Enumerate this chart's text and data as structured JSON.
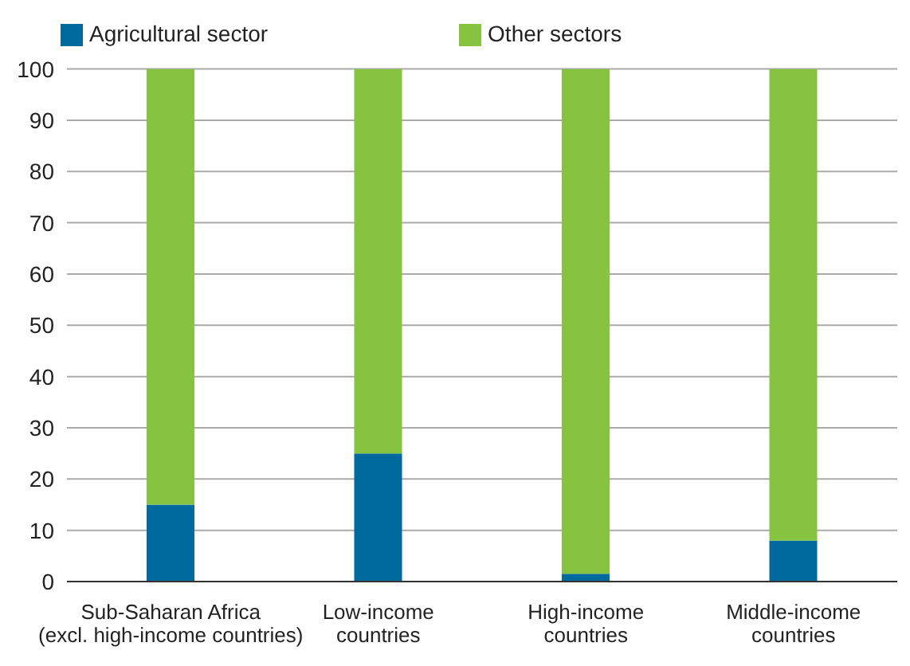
{
  "chart_data": {
    "type": "bar",
    "stacked": true,
    "categories": [
      "Sub-Saharan Africa\n(excl. high-income countries)",
      "Low-income\ncountries",
      "High-income\ncountries",
      "Middle-income\ncountries"
    ],
    "series": [
      {
        "name": "Agricultural sector",
        "color": "#006a9e",
        "values": [
          15,
          25,
          1.5,
          8
        ]
      },
      {
        "name": "Other sectors",
        "color": "#86c440",
        "values": [
          85,
          75,
          98.5,
          92
        ]
      }
    ],
    "ylim": [
      0,
      100
    ],
    "yticks": [
      0,
      10,
      20,
      30,
      40,
      50,
      60,
      70,
      80,
      90,
      100
    ],
    "grid": "y",
    "legend": "top left"
  }
}
